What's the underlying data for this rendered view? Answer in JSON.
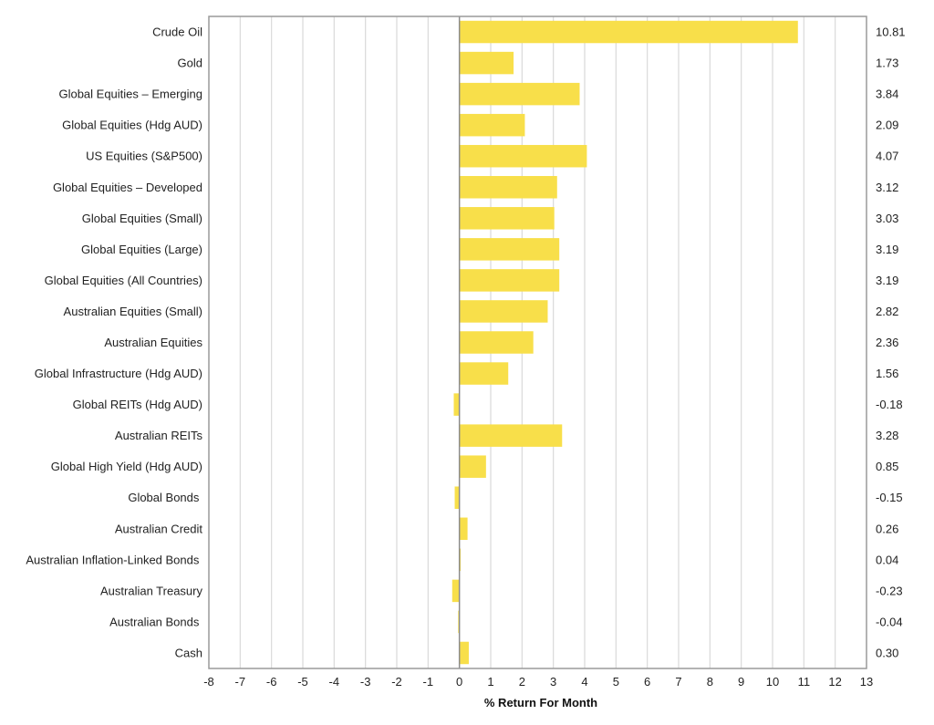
{
  "chart_data": {
    "type": "bar",
    "orientation": "horizontal",
    "title": "",
    "xlabel": "% Return For Month",
    "ylabel": "",
    "xlim": [
      -8,
      13
    ],
    "xticks": [
      "-8",
      "-7",
      "-6",
      "-5",
      "-4",
      "-3",
      "-2",
      "-1",
      "0",
      "1",
      "2",
      "3",
      "4",
      "5",
      "6",
      "7",
      "8",
      "9",
      "10",
      "11",
      "12",
      "13"
    ],
    "grid": true,
    "categories": [
      "Crude Oil",
      "Gold",
      "Global Equities – Emerging",
      "Global Equities (Hdg AUD)",
      "US Equities (S&P500)",
      "Global Equities – Developed",
      "Global Equities (Small)",
      "Global Equities (Large)",
      "Global Equities (All Countries)",
      "Australian Equities (Small)",
      "Australian Equities",
      "Global Infrastructure (Hdg AUD)",
      "Global REITs (Hdg AUD)",
      "Australian REITs",
      "Global High Yield (Hdg AUD)",
      "Global Bonds ",
      "Australian Credit",
      "Australian Inflation-Linked Bonds ",
      "Australian Treasury",
      "Australian Bonds ",
      "Cash"
    ],
    "values": [
      10.81,
      1.73,
      3.84,
      2.09,
      4.07,
      3.12,
      3.03,
      3.19,
      3.19,
      2.82,
      2.36,
      1.56,
      -0.18,
      3.28,
      0.85,
      -0.15,
      0.26,
      0.04,
      -0.23,
      -0.04,
      0.3
    ],
    "value_labels": [
      "10.81",
      "1.73",
      "3.84",
      "2.09",
      "4.07",
      "3.12",
      "3.03",
      "3.19",
      "3.19",
      "2.82",
      "2.36",
      "1.56",
      "-0.18",
      "3.28",
      "0.85",
      "-0.15",
      "0.26",
      "0.04",
      "-0.23",
      "-0.04",
      "0.30"
    ],
    "colors": {
      "bar": "#F8DF4A",
      "grid": "#D9D9D9",
      "frame": "#9A9A9A",
      "zero_line": "#8C8C8C"
    }
  }
}
